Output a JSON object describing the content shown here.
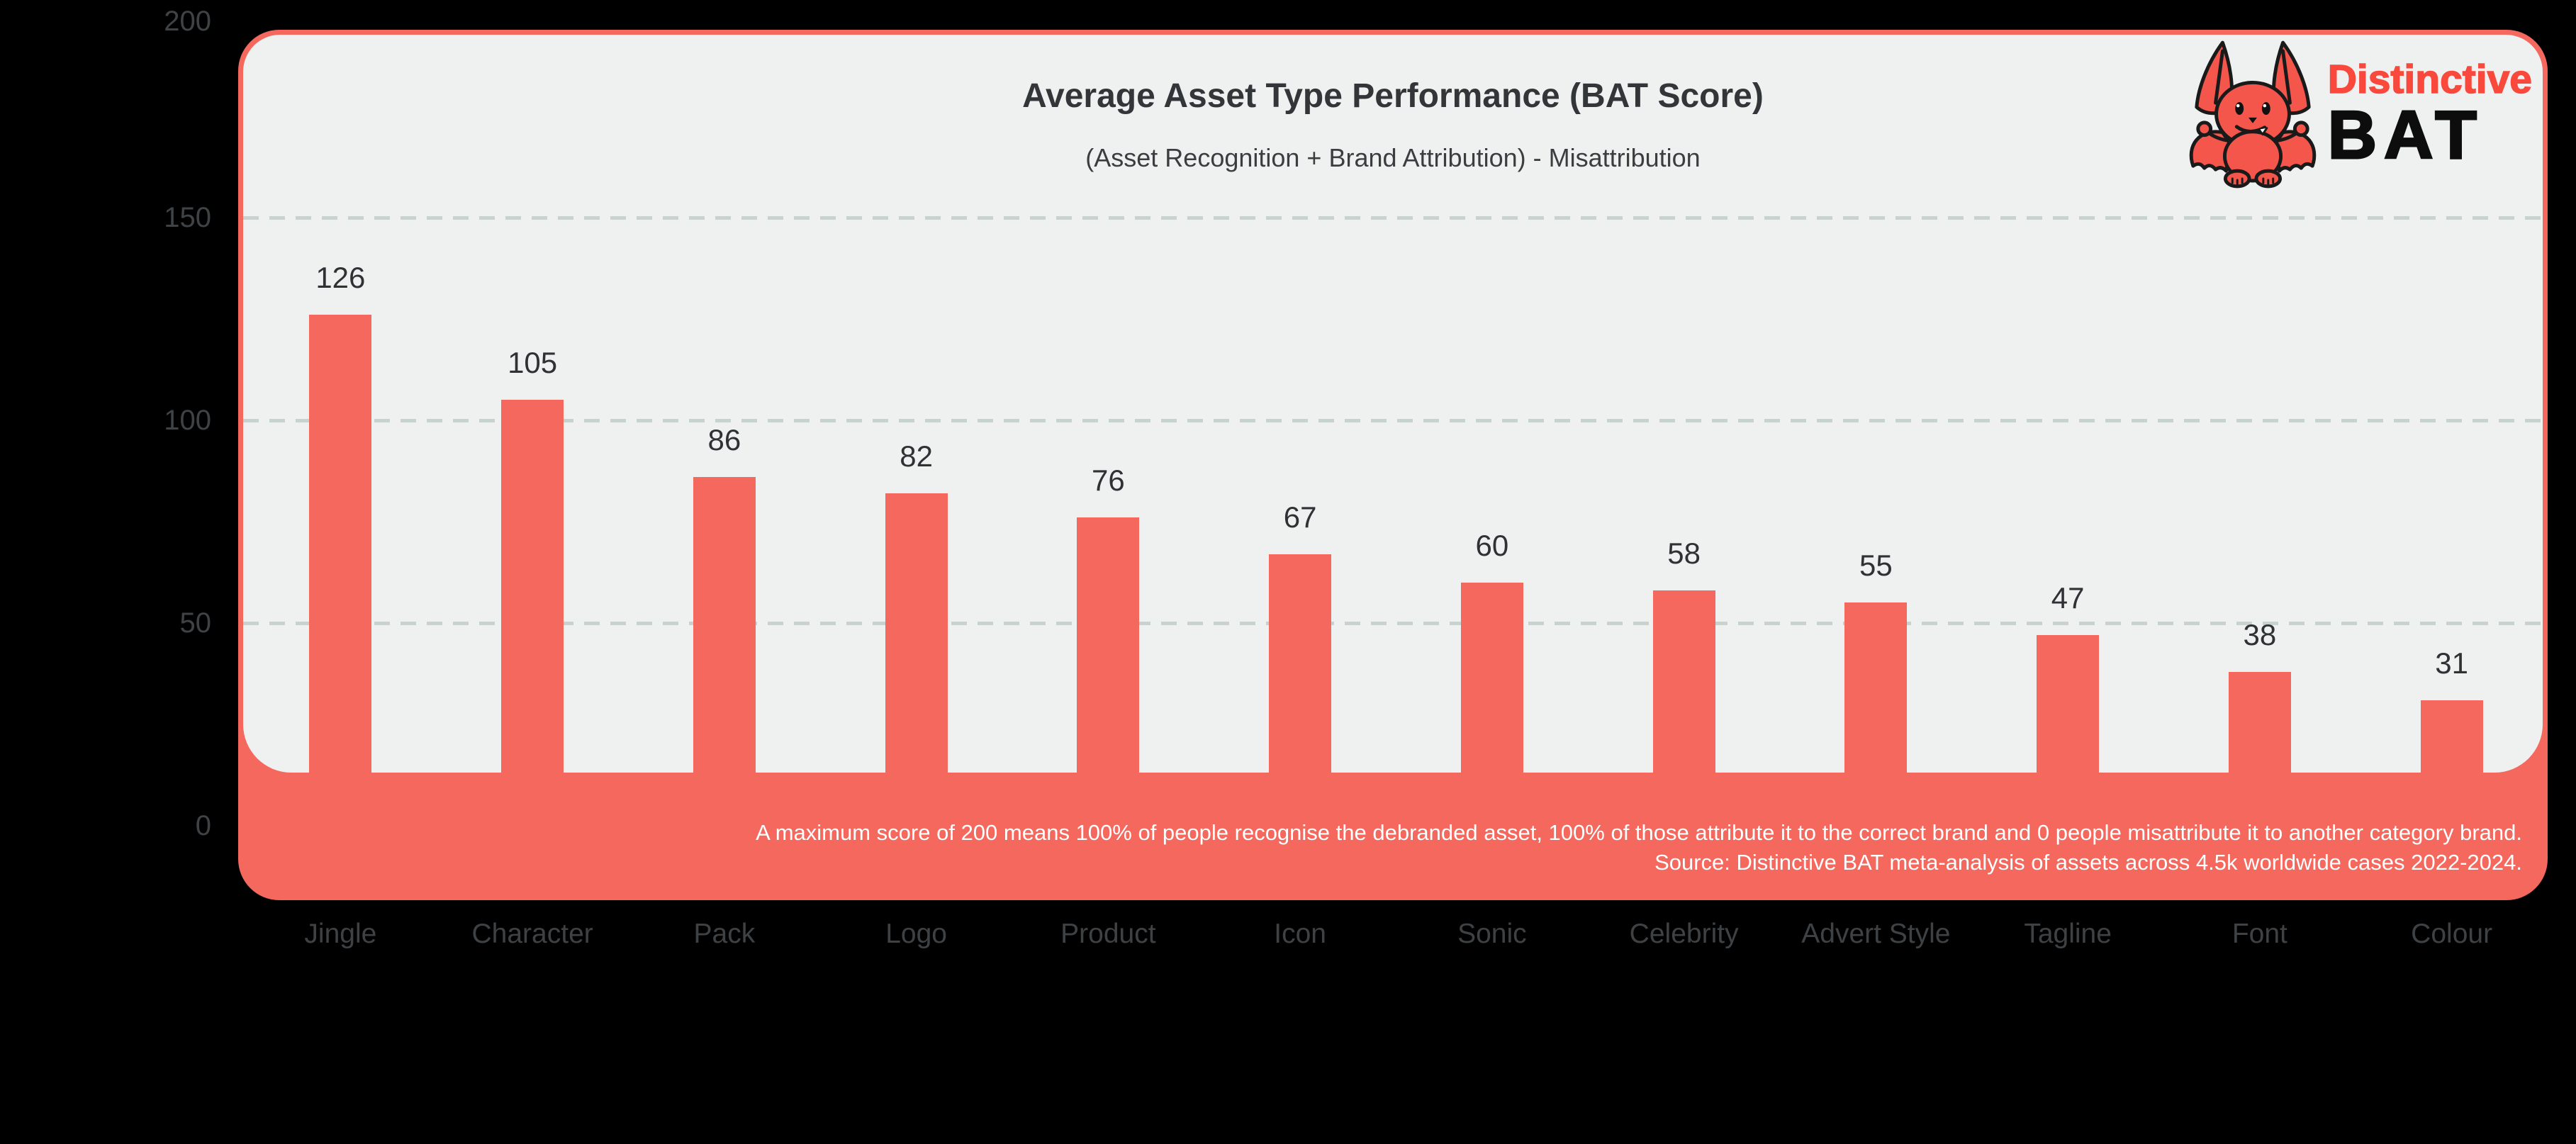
{
  "page": {
    "background": "#000000"
  },
  "colors": {
    "accent_salmon": "#F4685E",
    "logo_red": "#F8493C",
    "panel_gray": "#EFF1F1",
    "gridline": "#C7D3D0",
    "title_text": "#333639",
    "axis_text": "#3F4346",
    "value_text": "#2E3235",
    "footnote_text": "#FFFFFF"
  },
  "header": {
    "title": "Average Asset Type Performance (BAT Score)",
    "subtitle": "(Asset Recognition + Brand Attribution) - Misattribution"
  },
  "logo": {
    "mascot": "bat-mascot",
    "brand_line1": "Distinctive",
    "brand_line2": "BAT"
  },
  "footnote": {
    "line1": "A maximum score of 200 means 100% of people recognise the debranded asset, 100% of those attribute it to the correct brand and 0 people misattribute it to another category brand.",
    "line2": "Source: Distinctive BAT meta-analysis of assets across 4.5k worldwide cases 2022-2024."
  },
  "chart_data": {
    "type": "bar",
    "title": "Average Asset Type Performance (BAT Score)",
    "subtitle": "(Asset Recognition + Brand Attribution) - Misattribution",
    "categories": [
      "Jingle",
      "Character",
      "Pack",
      "Logo",
      "Product",
      "Icon",
      "Sonic",
      "Celebrity",
      "Advert Style",
      "Tagline",
      "Font",
      "Colour"
    ],
    "values": [
      126,
      105,
      86,
      82,
      76,
      67,
      60,
      58,
      55,
      47,
      38,
      31
    ],
    "bar_color": "#F4685E",
    "value_labels": true,
    "xlabel": "",
    "ylabel": "",
    "ylim": [
      0,
      200
    ],
    "yticks": [
      200,
      150,
      100,
      50,
      0
    ],
    "gridlines": [
      150,
      100,
      50
    ],
    "grid_style": "dashed horizontal",
    "legend": "none"
  }
}
